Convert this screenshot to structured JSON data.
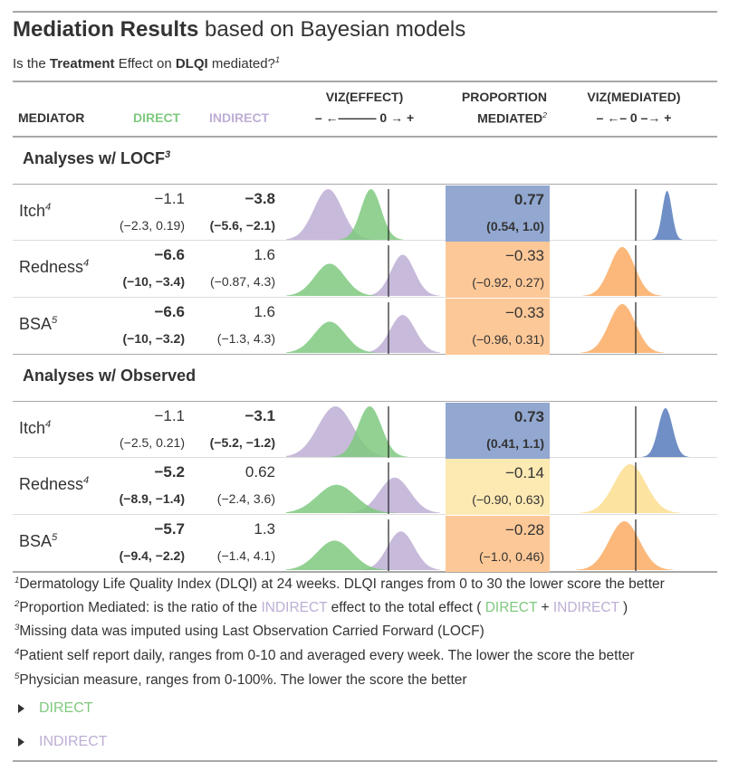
{
  "title": {
    "bold": "Mediation Results",
    "rest": " based on Bayesian models"
  },
  "subtitle": {
    "pre": "Is the ",
    "b1": "Treatment",
    "mid": " Effect on ",
    "b2": "DLQI",
    "post": " mediated?",
    "sup": "1"
  },
  "headers": {
    "mediator": "MEDIATOR",
    "direct": "DIRECT",
    "indirect": "INDIRECT",
    "viz_effect": "VIZ(EFFECT)",
    "viz_effect_axis": "– ←——— 0 → +",
    "proportion_line1": "PROPORTION",
    "proportion_line2": "MEDIATED",
    "proportion_sup": "2",
    "viz_mediated": "VIZ(MEDIATED)",
    "viz_mediated_axis": "– ←– 0 –→ +"
  },
  "colors": {
    "direct": "#7fc97f",
    "indirect": "#beaed4",
    "prop_high": "#92a8d1",
    "prop_neg": "#fdc897",
    "prop_small": "#fde9b2",
    "text": "#333333",
    "rule": "#a8a8a8"
  },
  "groups": [
    {
      "label": "Analyses w/ LOCF",
      "sup": "3",
      "rows": [
        {
          "mediator": "Itch",
          "sup": "4",
          "direct": "−1.1",
          "direct_ci": "(−2.3, 0.19)",
          "direct_bold": false,
          "indirect": "−3.8",
          "indirect_ci": "(−5.6, −2.1)",
          "indirect_bold": true,
          "prop": "0.77",
          "prop_ci": "(0.54, 1.0)",
          "prop_bold": true,
          "prop_color": "prop_high"
        },
        {
          "mediator": "Redness",
          "sup": "4",
          "direct": "−6.6",
          "direct_ci": "(−10, −3.4)",
          "direct_bold": true,
          "indirect": "1.6",
          "indirect_ci": "(−0.87, 4.3)",
          "indirect_bold": false,
          "prop": "−0.33",
          "prop_ci": "(−0.92, 0.27)",
          "prop_bold": false,
          "prop_color": "prop_neg"
        },
        {
          "mediator": "BSA",
          "sup": "5",
          "direct": "−6.6",
          "direct_ci": "(−10, −3.2)",
          "direct_bold": true,
          "indirect": "1.6",
          "indirect_ci": "(−1.3, 4.3)",
          "indirect_bold": false,
          "prop": "−0.33",
          "prop_ci": "(−0.96, 0.31)",
          "prop_bold": false,
          "prop_color": "prop_neg"
        }
      ]
    },
    {
      "label": "Analyses w/ Observed",
      "sup": "",
      "rows": [
        {
          "mediator": "Itch",
          "sup": "4",
          "direct": "−1.1",
          "direct_ci": "(−2.5, 0.21)",
          "direct_bold": false,
          "indirect": "−3.1",
          "indirect_ci": "(−5.2, −1.2)",
          "indirect_bold": true,
          "prop": "0.73",
          "prop_ci": "(0.41, 1.1)",
          "prop_bold": true,
          "prop_color": "prop_high"
        },
        {
          "mediator": "Redness",
          "sup": "4",
          "direct": "−5.2",
          "direct_ci": "(−8.9, −1.4)",
          "direct_bold": true,
          "indirect": "0.62",
          "indirect_ci": "(−2.4, 3.6)",
          "indirect_bold": false,
          "prop": "−0.14",
          "prop_ci": "(−0.90, 0.63)",
          "prop_bold": false,
          "prop_color": "prop_small"
        },
        {
          "mediator": "BSA",
          "sup": "5",
          "direct": "−5.7",
          "direct_ci": "(−9.4, −2.2)",
          "direct_bold": true,
          "indirect": "1.3",
          "indirect_ci": "(−1.4, 4.1)",
          "indirect_bold": false,
          "prop": "−0.28",
          "prop_ci": "(−1.0, 0.46)",
          "prop_bold": false,
          "prop_color": "prop_neg"
        }
      ]
    }
  ],
  "footnotes": {
    "f1": {
      "sup": "1",
      "text": "Dermatology Life Quality Index (DLQI) at 24 weeks. DLQI ranges from 0 to 30 the lower score the better"
    },
    "f2": {
      "sup": "2",
      "pre": "Proportion Mediated: is the ratio of the ",
      "indirect": "INDIRECT",
      "mid": " effect to the total effect ( ",
      "direct": "DIRECT",
      "plus": " + ",
      "indirect2": "INDIRECT",
      "post": " )"
    },
    "f3": {
      "sup": "3",
      "text": "Missing data was imputed using Last Observation Carried Forward (LOCF)"
    },
    "f4": {
      "sup": "4",
      "text": "Patient self report daily, ranges from 0-10 and averaged every week. The lower the score the better"
    },
    "f5": {
      "sup": "5",
      "text": "Physician measure, ranges from 0-100%. The lower the score the better"
    }
  },
  "legend": {
    "direct": "DIRECT",
    "indirect": "INDIRECT"
  }
}
